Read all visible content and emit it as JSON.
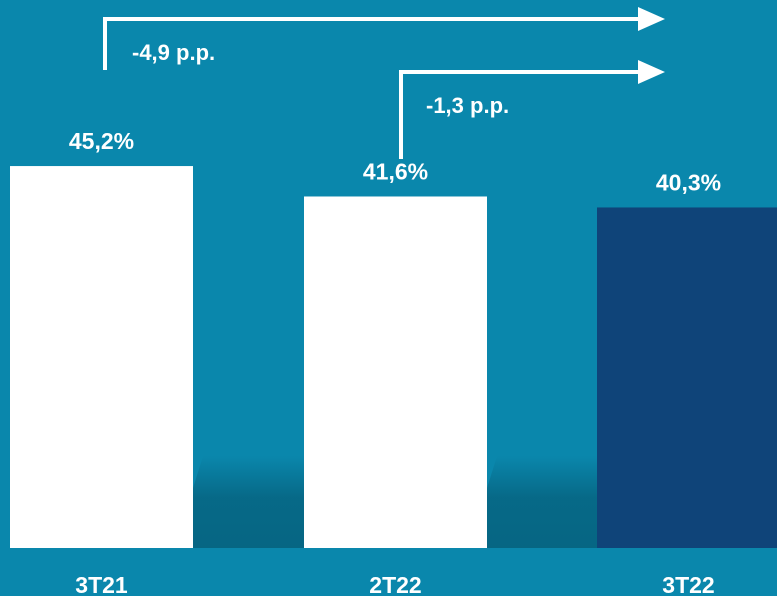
{
  "chart_data": {
    "type": "bar",
    "categories": [
      "3T21",
      "2T22",
      "3T22"
    ],
    "values": [
      45.2,
      41.6,
      40.3
    ],
    "value_labels": [
      "45,2%",
      "41,6%",
      "40,3%"
    ],
    "title": "",
    "xlabel": "",
    "ylabel": "",
    "ylim": [
      0,
      50
    ],
    "grid": false,
    "annotations": [
      {
        "from": "3T21",
        "to": "3T22",
        "text": "-4,9 p.p."
      },
      {
        "from": "2T22",
        "to": "3T22",
        "text": "-1,3 p.p."
      }
    ],
    "colors": {
      "background": "#0a87ac",
      "bar": "#ffffff",
      "highlight_bar": "#0f4479",
      "shadow": "#066481",
      "text": "#ffffff"
    },
    "highlight_index": 2
  }
}
